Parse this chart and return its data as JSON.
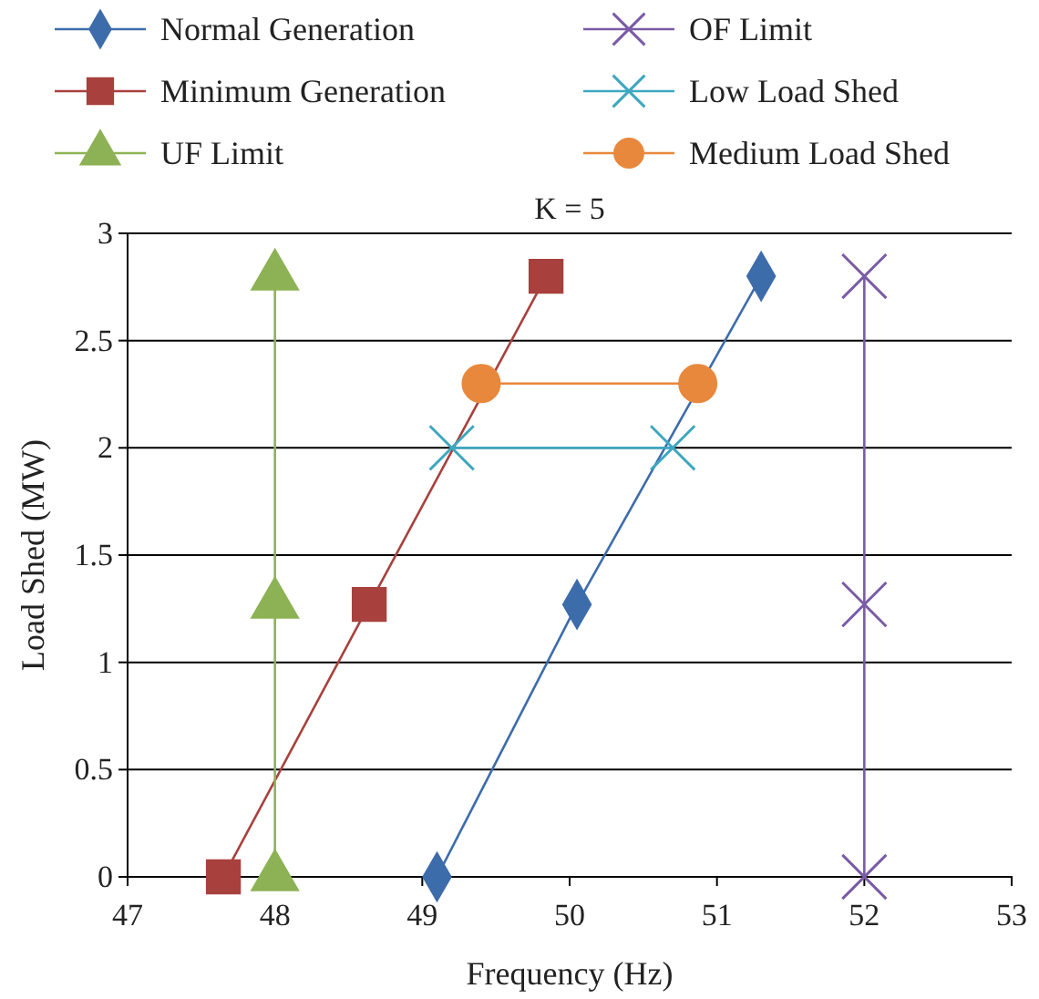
{
  "chart_data": {
    "type": "line",
    "title": "K = 5",
    "xlabel": "Frequency (Hz)",
    "ylabel": "Load Shed (MW)",
    "xlim": [
      47,
      53
    ],
    "xticks": [
      47,
      48,
      49,
      50,
      51,
      52,
      53
    ],
    "ylim": [
      0,
      3
    ],
    "yticks": [
      0,
      0.5,
      1,
      1.5,
      2,
      2.5,
      3
    ],
    "grid": "y",
    "legend": "top",
    "series": [
      {
        "name": "Normal Generation",
        "color": "#3d6cab",
        "marker": "diamond",
        "x": [
          49.1,
          50.05,
          51.3
        ],
        "values": [
          0,
          1.27,
          2.8
        ]
      },
      {
        "name": "OF Limit",
        "color": "#7a5ba6",
        "marker": "cross",
        "x": [
          52,
          52,
          52
        ],
        "values": [
          0,
          1.27,
          2.8
        ]
      },
      {
        "name": "Minimum Generation",
        "color": "#a8413d",
        "marker": "square",
        "x": [
          47.65,
          48.64,
          49.84
        ],
        "values": [
          0,
          1.27,
          2.8
        ]
      },
      {
        "name": "Low Load Shed",
        "color": "#3ea7bf",
        "marker": "cross",
        "x": [
          49.2,
          50.7
        ],
        "values": [
          2,
          2
        ]
      },
      {
        "name": "UF Limit",
        "color": "#8db255",
        "marker": "triangle",
        "x": [
          48,
          48,
          48
        ],
        "values": [
          0,
          1.27,
          2.8
        ]
      },
      {
        "name": "Medium Load Shed",
        "color": "#e8883c",
        "marker": "circle",
        "x": [
          49.4,
          50.87
        ],
        "values": [
          2.3,
          2.3
        ]
      }
    ]
  }
}
